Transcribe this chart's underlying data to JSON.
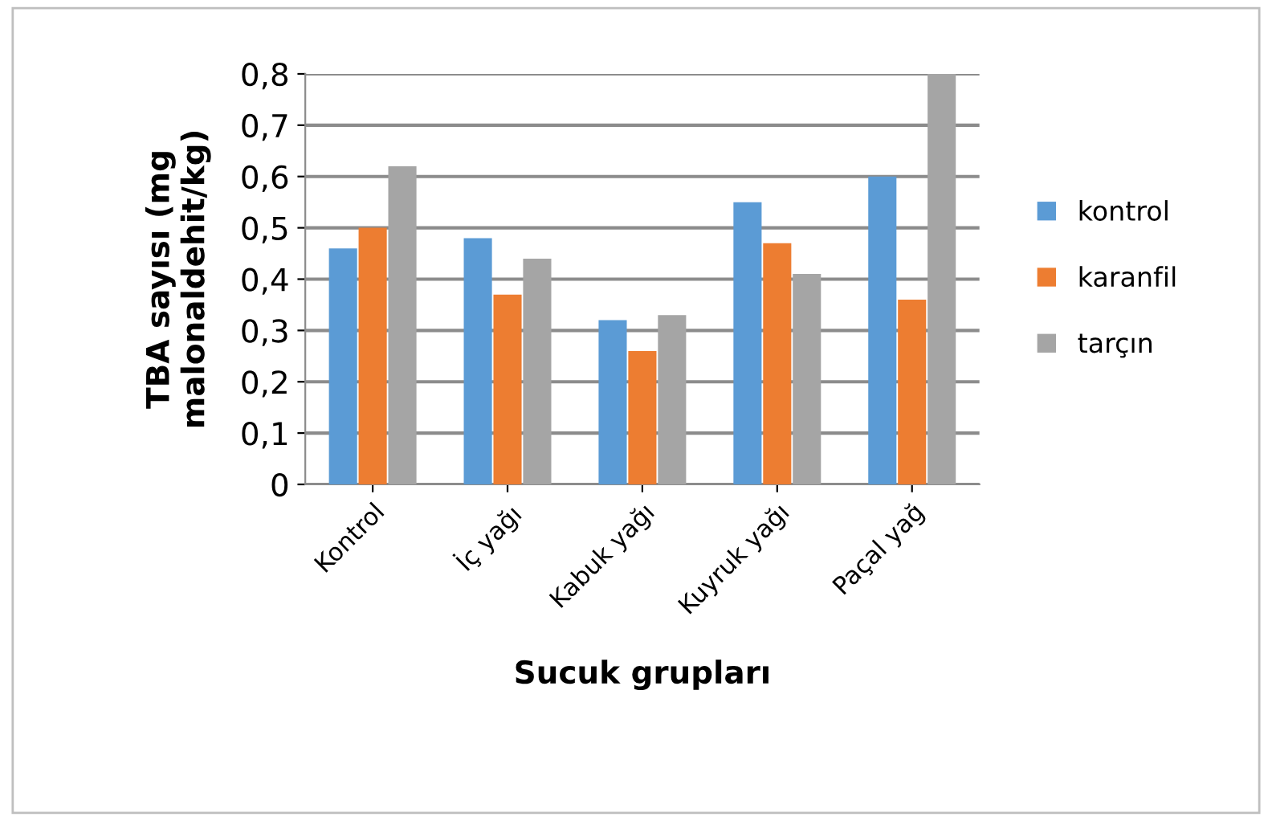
{
  "chart_data": {
    "type": "bar",
    "xlabel": "Sucuk grupları",
    "ylabel": "TBA sayısı (mg malonaldehit/kg)",
    "categories": [
      "Kontrol",
      "İç yağı",
      "Kabuk yağı",
      "Kuyruk yağı",
      "Paçal yağ"
    ],
    "series": [
      {
        "name": "kontrol",
        "color": "#5b9bd5",
        "values": [
          0.46,
          0.48,
          0.32,
          0.55,
          0.6
        ]
      },
      {
        "name": "karanfil",
        "color": "#ed7d31",
        "values": [
          0.5,
          0.37,
          0.26,
          0.47,
          0.36
        ]
      },
      {
        "name": "tarçın",
        "color": "#a5a5a5",
        "values": [
          0.62,
          0.44,
          0.33,
          0.41,
          0.8
        ]
      }
    ],
    "ylim": [
      0,
      0.8
    ],
    "yticks": [
      0,
      {
        "value": 0.1,
        "label": "0,1"
      },
      {
        "value": 0.2,
        "label": "0,2"
      },
      {
        "value": 0.3,
        "label": "0,3"
      },
      {
        "value": 0.4,
        "label": "0,4"
      },
      {
        "value": 0.5,
        "label": "0,5"
      },
      {
        "value": 0.6,
        "label": "0,6"
      },
      {
        "value": 0.7,
        "label": "0,7"
      },
      {
        "value": 0.8,
        "label": "0,8"
      }
    ],
    "grid": "y",
    "legend": "right"
  }
}
